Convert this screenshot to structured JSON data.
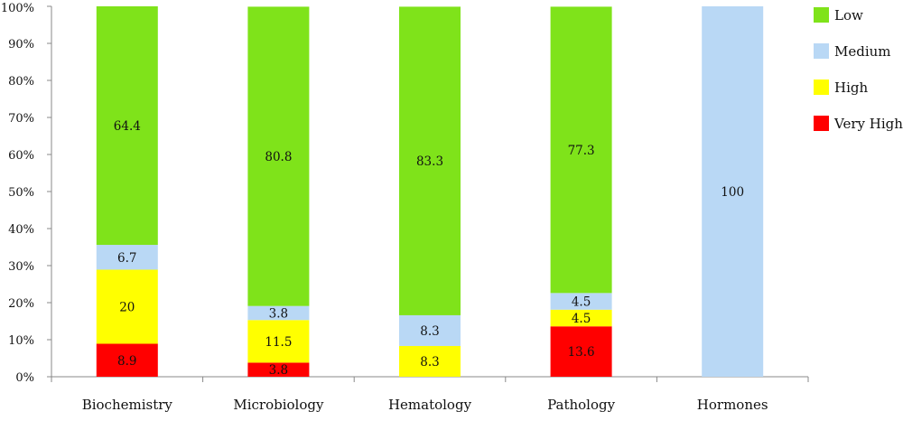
{
  "chart_data": {
    "type": "bar",
    "stacked": true,
    "categories": [
      "Biochemistry",
      "Microbiology",
      "Hematology",
      "Pathology",
      "Hormones"
    ],
    "series": [
      {
        "name": "Very High",
        "color": "#ff0000",
        "values": [
          8.9,
          3.8,
          0,
          13.6,
          0
        ],
        "labels": [
          "8.9",
          "3.8",
          "",
          "13.6",
          ""
        ]
      },
      {
        "name": "High",
        "color": "#ffff00",
        "values": [
          20,
          11.5,
          8.3,
          4.5,
          0
        ],
        "labels": [
          "20",
          "11.5",
          "8.3",
          "4.5",
          ""
        ]
      },
      {
        "name": "Medium",
        "color": "#b9d8f5",
        "values": [
          6.7,
          3.8,
          8.3,
          4.5,
          100
        ],
        "labels": [
          "6.7",
          "3.8",
          "8.3",
          "4.5",
          "100"
        ]
      },
      {
        "name": "Low",
        "color": "#7fe31a",
        "values": [
          64.4,
          80.8,
          83.3,
          77.3,
          0
        ],
        "labels": [
          "64.4",
          "80.8",
          "83.3",
          "77.3",
          ""
        ]
      }
    ],
    "legend_order": [
      "Low",
      "Medium",
      "High",
      "Very High"
    ],
    "legend_position": "right",
    "y_ticks": [
      "0%",
      "10%",
      "20%",
      "30%",
      "40%",
      "50%",
      "60%",
      "70%",
      "80%",
      "90%",
      "100%"
    ],
    "ylim": [
      0,
      100
    ],
    "grid": false
  }
}
